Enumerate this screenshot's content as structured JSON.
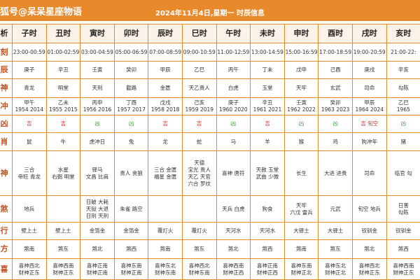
{
  "header": {
    "source": "狐号@呆呆星座物语",
    "title": "2024年11月4日,星期一 时辰信息"
  },
  "table": {
    "columns": [
      "子时",
      "丑时",
      "寅时",
      "卯时",
      "辰时",
      "巳时",
      "午时",
      "未时",
      "申时",
      "酉时",
      "戌时",
      "亥时"
    ],
    "labels": [
      "析",
      "刻",
      "辰",
      "神",
      "冲",
      "凶",
      "肖",
      "神",
      "煞",
      "行",
      "方",
      "喜"
    ],
    "rows": [
      [
        [
          "23:00-00:59"
        ],
        [
          "01:00-02:59"
        ],
        [
          "03:00-04:59"
        ],
        [
          "05:00-06:59"
        ],
        [
          "07:00-08:59"
        ],
        [
          "09:00-10:59"
        ],
        [
          "11:00-12:59"
        ],
        [
          "13:00-14:59"
        ],
        [
          "15:00-16:59"
        ],
        [
          "17:00-18:59"
        ],
        [
          "19:00-20:59"
        ],
        [
          "21:00-22:"
        ]
      ],
      [
        [
          "庚子"
        ],
        [
          "辛丑"
        ],
        [
          "壬寅"
        ],
        [
          "癸卯"
        ],
        [
          "甲辰"
        ],
        [
          "乙巳"
        ],
        [
          "丙午"
        ],
        [
          "丁未"
        ],
        [
          "戊申"
        ],
        [
          "己酉"
        ],
        [
          "庚戌"
        ],
        [
          "辛亥"
        ]
      ],
      [
        [
          "青龙"
        ],
        [
          "明堂"
        ],
        [
          "天刑"
        ],
        [
          "截路"
        ],
        [
          "金匮"
        ],
        [
          "天乙贵人"
        ],
        [
          "白虎"
        ],
        [
          "玉堂"
        ],
        [
          "天牢"
        ],
        [
          "玄武"
        ],
        [
          "司命"
        ],
        [
          "勾陈"
        ]
      ],
      [
        [
          "甲午",
          "1954 2014"
        ],
        [
          "乙未",
          "1955 2015"
        ],
        [
          "丙申",
          "1956 2016"
        ],
        [
          "丁酉",
          "1957 2017"
        ],
        [
          "戊戌",
          "1958 2018"
        ],
        [
          "己亥",
          "1959 2019"
        ],
        [
          "庚子",
          "1960 2020"
        ],
        [
          "辛丑",
          "1961 2021"
        ],
        [
          "壬寅",
          "1962 2022"
        ],
        [
          "癸卯",
          "1963 2023"
        ],
        [
          "甲辰",
          "1964 2024"
        ],
        [
          "乙巳",
          "1965"
        ]
      ],
      [
        [
          "吉"
        ],
        [
          "吉"
        ],
        [
          "凶"
        ],
        [
          "凶"
        ],
        [
          "吉"
        ],
        [
          "吉"
        ],
        [
          "凶"
        ],
        [
          "吉"
        ],
        [
          "凶"
        ],
        [
          "凶"
        ],
        [
          "吉 旬空"
        ],
        [
          "凶"
        ]
      ],
      [
        [
          "鼠"
        ],
        [
          "牛"
        ],
        [
          "虎冲日"
        ],
        [
          "兔"
        ],
        [
          "龙"
        ],
        [
          "蛇"
        ],
        [
          "马"
        ],
        [
          "羊"
        ],
        [
          "猴"
        ],
        [
          "鸡"
        ],
        [
          "狗冲年"
        ],
        [
          "猪"
        ]
      ],
      [
        [
          "三合",
          "帝旺 青龙"
        ],
        [
          "水星",
          "右弼 明堂"
        ],
        [
          "驿马",
          "文昌 比肩"
        ],
        [
          "贵人 贪狼"
        ],
        [
          "三合 金匮",
          "福星 金匮"
        ],
        [
          "天德",
          "宝光 贵人",
          "天乙 天官",
          "六合 罗纹"
        ],
        [
          "喜神 唐符"
        ],
        [
          "天赦 玉堂",
          "武曲 少微"
        ],
        [
          "长生"
        ],
        [
          "大进 进贵"
        ],
        [
          "司命"
        ],
        [
          "临官 勾"
        ]
      ],
      [
        [
          "地兵"
        ],
        [],
        [
          "日破 大耗",
          "天狱 大退",
          "日刑 天刑"
        ],
        [
          "朱雀 路空"
        ],
        [],
        [],
        [
          "天兵 白虎"
        ],
        [
          "狗食"
        ],
        [
          "天牢",
          "六戊 雷兵"
        ],
        [
          "元武"
        ],
        [
          "旬空 地兵"
        ],
        [
          "日害",
          "勾陈"
        ]
      ],
      [
        [
          "壁上土"
        ],
        [
          "壁上土"
        ],
        [
          "金箔金"
        ],
        [
          "金箔金"
        ],
        [
          "覆灯火"
        ],
        [
          "覆灯火"
        ],
        [
          "天河水"
        ],
        [
          "天河水"
        ],
        [
          "大驿土"
        ],
        [
          "大驿土"
        ],
        [
          "钗钏金"
        ],
        [
          "钗钏金"
        ]
      ],
      [
        [
          "煞南"
        ],
        [
          "煞东"
        ],
        [
          "煞北"
        ],
        [
          "煞西"
        ],
        [
          "煞南"
        ],
        [
          "煞东"
        ],
        [
          "煞北"
        ],
        [
          "煞西"
        ],
        [
          "煞南"
        ],
        [
          "煞东"
        ],
        [
          "煞北"
        ],
        [
          "煞西"
        ]
      ],
      [
        [
          "喜神西北",
          "财神正东"
        ],
        [
          "喜神西南",
          "财神正东"
        ],
        [
          "喜神正南",
          "财神正南"
        ],
        [
          "喜神东南",
          "财神正南"
        ],
        [
          "喜神东北",
          "财神东南"
        ],
        [
          "喜神西北",
          "财神东南"
        ],
        [
          "喜神西南",
          "财神正西"
        ],
        [
          "喜神正南",
          "财神正西"
        ],
        [
          "喜神东南",
          "财神正北"
        ],
        [
          "喜神东北",
          "财神正北"
        ],
        [
          "喜神西北",
          "财神正东"
        ],
        [
          "喜神西南",
          "财神正东"
        ]
      ]
    ],
    "luck_row": 4,
    "luck_colors": [
      "#d42a2a",
      "#d42a2a",
      "#3a9a3a",
      "#3a9a3a",
      "#d42a2a",
      "#d42a2a",
      "#3a9a3a",
      "#d42a2a",
      "#3a9a3a",
      "#3a9a3a",
      "#d42a2a",
      "#3a9a3a"
    ]
  }
}
